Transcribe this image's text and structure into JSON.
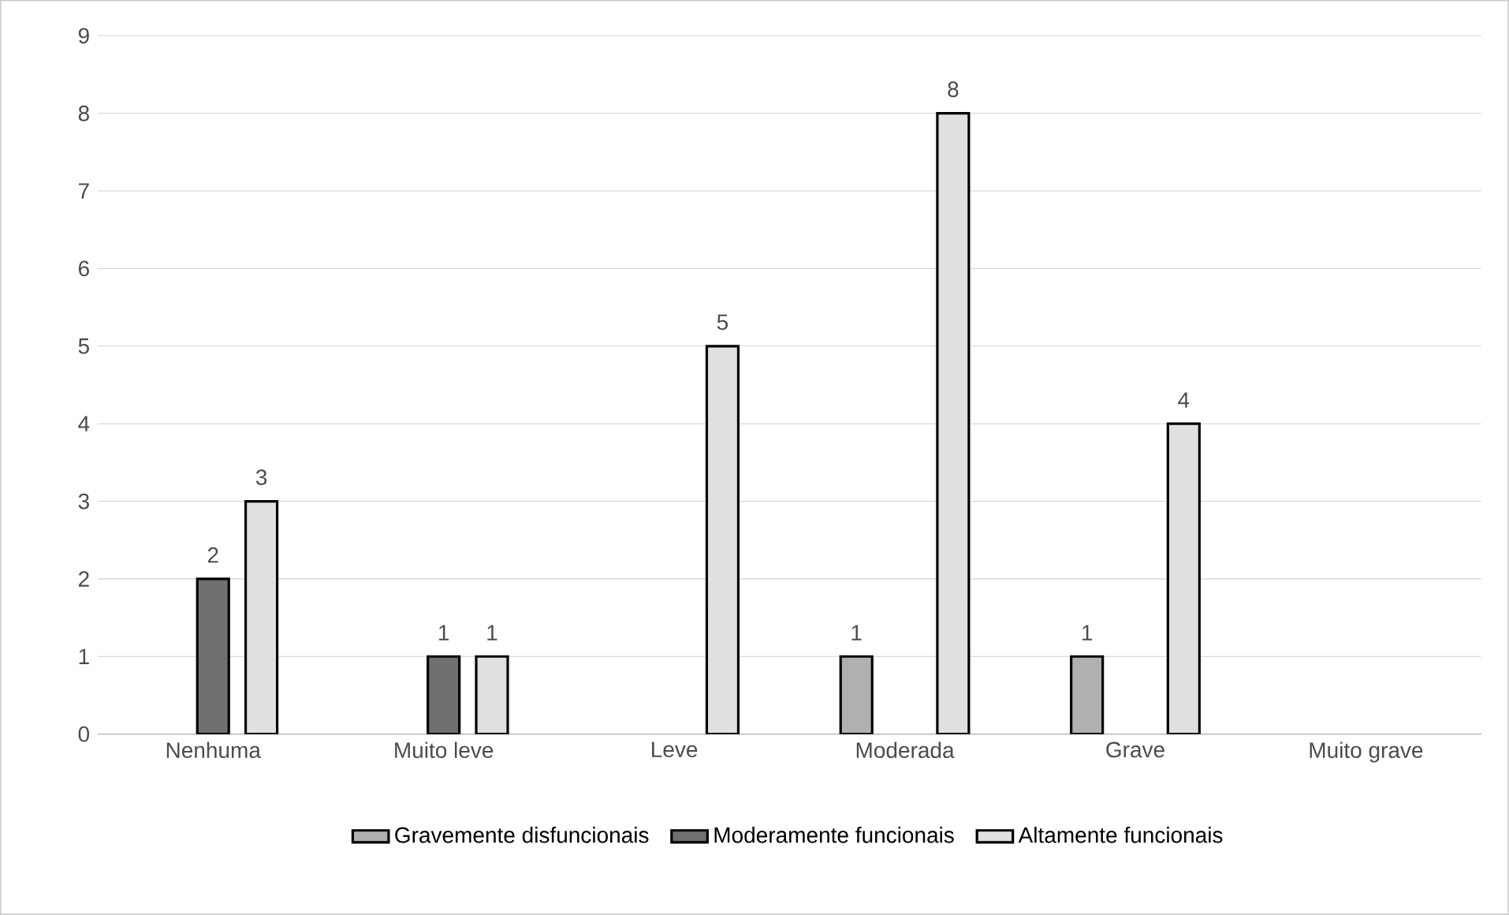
{
  "chart_data": {
    "type": "bar",
    "categories": [
      "Nenhuma",
      "Muito leve",
      "Leve",
      "Moderada",
      "Grave",
      "Muito grave"
    ],
    "series": [
      {
        "name": "Gravemente disfuncionais",
        "color": "#b0b0b0",
        "values": [
          null,
          null,
          null,
          1,
          1,
          null
        ]
      },
      {
        "name": "Moderamente funcionais",
        "color": "#707070",
        "values": [
          2,
          1,
          null,
          null,
          null,
          null
        ]
      },
      {
        "name": "Altamente funcionais",
        "color": "#e0e0e0",
        "values": [
          3,
          1,
          5,
          8,
          4,
          null
        ]
      }
    ],
    "ylim": [
      0,
      9
    ],
    "yticks": [
      0,
      1,
      2,
      3,
      4,
      5,
      6,
      7,
      8,
      9
    ],
    "grid": "y",
    "legend": "bottom",
    "data_labels": true
  }
}
